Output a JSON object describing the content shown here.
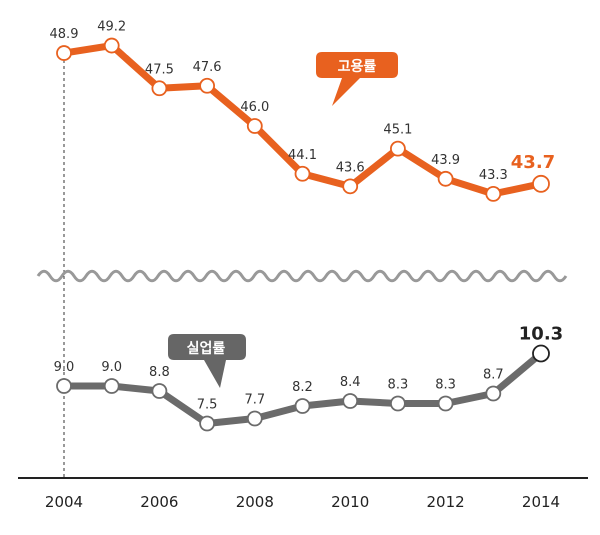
{
  "chart_data": {
    "type": "line",
    "x": [
      2004,
      2005,
      2006,
      2007,
      2008,
      2009,
      2010,
      2011,
      2012,
      2013,
      2014
    ],
    "x_tick_labels": [
      "2004",
      "2006",
      "2008",
      "2010",
      "2012",
      "2014"
    ],
    "series": [
      {
        "name": "고용률",
        "color": "#e8611f",
        "values": [
          48.9,
          49.2,
          47.5,
          47.6,
          46.0,
          44.1,
          43.6,
          45.1,
          43.9,
          43.3,
          43.7
        ],
        "labels": [
          "48.9",
          "49.2",
          "47.5",
          "47.6",
          "46.0",
          "44.1",
          "43.6",
          "45.1",
          "43.9",
          "43.3",
          "43.7"
        ],
        "y_range": [
          42.5,
          49.5
        ]
      },
      {
        "name": "실업률",
        "color": "#6b6b6b",
        "values": [
          9.0,
          9.0,
          8.8,
          7.5,
          7.7,
          8.2,
          8.4,
          8.3,
          8.3,
          8.7,
          10.3
        ],
        "labels": [
          "9.0",
          "9.0",
          "8.8",
          "7.5",
          "7.7",
          "8.2",
          "8.4",
          "8.3",
          "8.3",
          "8.7",
          "10.3"
        ],
        "y_range": [
          6.0,
          11.0
        ]
      }
    ],
    "axis_break": true,
    "grid": false,
    "reference_line_x": 2004
  }
}
